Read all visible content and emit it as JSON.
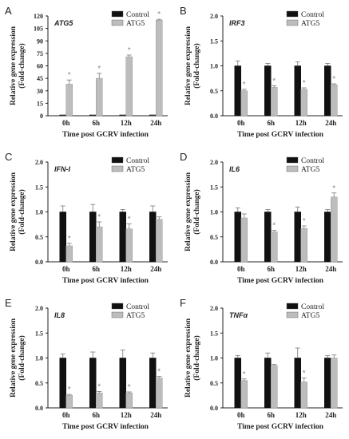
{
  "figure": {
    "panels_order": [
      "A",
      "B",
      "C",
      "D",
      "E",
      "F"
    ]
  },
  "chart_data": [
    {
      "type": "bar",
      "panel_letter": "A",
      "gene_label": "ATG5",
      "categories": [
        "0h",
        "6h",
        "12h",
        "24h"
      ],
      "yticks": [
        "0",
        "15",
        "30",
        "45",
        "60",
        "75",
        "90",
        "105",
        "120"
      ],
      "ylim": [
        0,
        120
      ],
      "ylabel": "Relative gene expression",
      "ylabel2": "(Fold-change)",
      "xlabel": "Time post GCRV infection",
      "series": [
        {
          "name": "Control",
          "values": [
            1,
            1,
            1,
            1
          ],
          "errors": [
            0.1,
            0.1,
            0.1,
            0.1
          ],
          "color": "#111111"
        },
        {
          "name": "ATG5",
          "values": [
            38,
            45,
            71,
            115
          ],
          "errors": [
            5,
            6,
            2,
            1
          ],
          "color": "#bdbdbd",
          "significant": [
            true,
            true,
            true,
            true
          ]
        }
      ]
    },
    {
      "type": "bar",
      "panel_letter": "B",
      "gene_label": "IRF3",
      "categories": [
        "0h",
        "6h",
        "12h",
        "24h"
      ],
      "yticks": [
        "0.0",
        "0.5",
        "1.0",
        "1.5",
        "2.0"
      ],
      "ylim": [
        0,
        2.0
      ],
      "ylabel": "Relative gene expression",
      "ylabel2": "(Fold-change)",
      "xlabel": "Time post GCRV infection",
      "series": [
        {
          "name": "Control",
          "values": [
            1.0,
            1.0,
            1.0,
            1.0
          ],
          "errors": [
            0.1,
            0.05,
            0.08,
            0.05
          ],
          "color": "#111111"
        },
        {
          "name": "ATG5",
          "values": [
            0.5,
            0.57,
            0.53,
            0.62
          ],
          "errors": [
            0.03,
            0.03,
            0.03,
            0.02
          ],
          "color": "#bdbdbd",
          "significant": [
            true,
            true,
            true,
            true
          ]
        }
      ]
    },
    {
      "type": "bar",
      "panel_letter": "C",
      "gene_label": "IFN-I",
      "categories": [
        "0h",
        "6h",
        "12h",
        "24h"
      ],
      "yticks": [
        "0.0",
        "0.5",
        "1.0",
        "1.5",
        "2.0"
      ],
      "ylim": [
        0,
        2.0
      ],
      "ylabel": "Relative gene expression",
      "ylabel2": "(Fold-change)",
      "xlabel": "Time post GCRV infection",
      "series": [
        {
          "name": "Control",
          "values": [
            1.0,
            1.0,
            1.0,
            1.0
          ],
          "errors": [
            0.12,
            0.15,
            0.05,
            0.12
          ],
          "color": "#111111"
        },
        {
          "name": "ATG5",
          "values": [
            0.32,
            0.7,
            0.66,
            0.85
          ],
          "errors": [
            0.05,
            0.1,
            0.1,
            0.05
          ],
          "color": "#bdbdbd",
          "significant": [
            true,
            true,
            true,
            false
          ]
        }
      ]
    },
    {
      "type": "bar",
      "panel_letter": "D",
      "gene_label": "IL6",
      "categories": [
        "0h",
        "6h",
        "12h",
        "24h"
      ],
      "yticks": [
        "0.0",
        "0.5",
        "1.0",
        "1.5",
        "2.0"
      ],
      "ylim": [
        0,
        2.0
      ],
      "ylabel": "Relative gene expression",
      "ylabel2": "(Fold-change)",
      "xlabel": "Time post GCRV infection",
      "series": [
        {
          "name": "Control",
          "values": [
            1.0,
            1.0,
            1.0,
            1.0
          ],
          "errors": [
            0.08,
            0.05,
            0.1,
            0.05
          ],
          "color": "#111111"
        },
        {
          "name": "ATG5",
          "values": [
            0.88,
            0.6,
            0.67,
            1.3
          ],
          "errors": [
            0.08,
            0.03,
            0.05,
            0.08
          ],
          "color": "#bdbdbd",
          "significant": [
            false,
            true,
            true,
            true
          ]
        }
      ]
    },
    {
      "type": "bar",
      "panel_letter": "E",
      "gene_label": "IL8",
      "categories": [
        "0h",
        "6h",
        "12h",
        "24h"
      ],
      "yticks": [
        "0.0",
        "0.5",
        "1.0",
        "1.5",
        "2.0"
      ],
      "ylim": [
        0,
        2.0
      ],
      "ylabel": "Relative gene expression",
      "ylabel2": "(Fold-change)",
      "xlabel": "Time post GCRV infection",
      "series": [
        {
          "name": "Control",
          "values": [
            1.0,
            1.0,
            1.0,
            1.0
          ],
          "errors": [
            0.08,
            0.12,
            0.16,
            0.1
          ],
          "color": "#111111"
        },
        {
          "name": "ATG5",
          "values": [
            0.25,
            0.3,
            0.3,
            0.6
          ],
          "errors": [
            0.02,
            0.03,
            0.02,
            0.03
          ],
          "color": "#bdbdbd",
          "significant": [
            true,
            true,
            true,
            true
          ]
        }
      ]
    },
    {
      "type": "bar",
      "panel_letter": "F",
      "gene_label": "TNFα",
      "categories": [
        "0h",
        "6h",
        "12h",
        "24h"
      ],
      "yticks": [
        "0.0",
        "0.5",
        "1.0",
        "1.5",
        "2.0"
      ],
      "ylim": [
        0,
        2.0
      ],
      "ylabel": "Relative gene expression",
      "ylabel2": "(Fold-change)",
      "xlabel": "Time post GCRV infection",
      "series": [
        {
          "name": "Control",
          "values": [
            1.0,
            1.0,
            1.0,
            1.0
          ],
          "errors": [
            0.05,
            0.1,
            0.2,
            0.05
          ],
          "color": "#111111"
        },
        {
          "name": "ATG5",
          "values": [
            0.55,
            0.85,
            0.52,
            1.0
          ],
          "errors": [
            0.03,
            0.02,
            0.08,
            0.06
          ],
          "color": "#bdbdbd",
          "significant": [
            true,
            false,
            true,
            false
          ]
        }
      ]
    }
  ]
}
